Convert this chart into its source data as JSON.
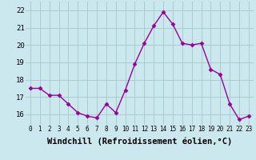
{
  "x": [
    0,
    1,
    2,
    3,
    4,
    5,
    6,
    7,
    8,
    9,
    10,
    11,
    12,
    13,
    14,
    15,
    16,
    17,
    18,
    19,
    20,
    21,
    22,
    23
  ],
  "y": [
    17.5,
    17.5,
    17.1,
    17.1,
    16.6,
    16.1,
    15.9,
    15.8,
    16.6,
    16.1,
    17.4,
    18.9,
    20.1,
    21.1,
    21.9,
    21.2,
    20.1,
    20.0,
    20.1,
    18.6,
    18.3,
    16.6,
    15.7,
    15.9
  ],
  "line_color": "#990099",
  "marker": "D",
  "markersize": 2.5,
  "linewidth": 1.0,
  "bg_color": "#cce8ef",
  "grid_color": "#aacccc",
  "xlabel": "Windchill (Refroidissement éolien,°C)",
  "xlabel_fontsize": 7.5,
  "ytick_fontsize": 6.5,
  "xtick_fontsize": 5.5,
  "yticks": [
    16,
    17,
    18,
    19,
    20,
    21,
    22
  ],
  "xticks": [
    0,
    1,
    2,
    3,
    4,
    5,
    6,
    7,
    8,
    9,
    10,
    11,
    12,
    13,
    14,
    15,
    16,
    17,
    18,
    19,
    20,
    21,
    22,
    23
  ],
  "ylim": [
    15.4,
    22.5
  ],
  "xlim": [
    -0.5,
    23.5
  ]
}
